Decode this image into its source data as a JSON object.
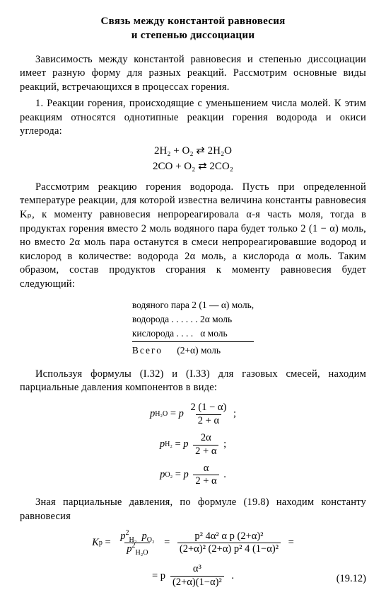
{
  "title_line1": "Связь между константой равновесия",
  "title_line2": "и степенью диссоциации",
  "para1": "Зависимость между константой равновесия и степенью диссоциации имеет разную форму для разных реакций. Рассмотрим основные виды реакций, встречающихся в процессах горения.",
  "para2": "1. Реакции горения, происходящие с уменьшением числа молей. К этим реакциям относятся однотипные реакции горения водорода и окиси углерода:",
  "eq1a": "2H₂ + O₂ ⇄ 2H₂O",
  "eq1b": "2CO + O₂ ⇄ 2CO₂",
  "para3": "Рассмотрим реакцию горения водорода. Пусть при определенной температуре реакции, для которой известна величина константы равновесия Kₚ, к моменту равновесия непрореагировала α-я часть моля, тогда в продуктах горения вместо 2 моль водяного пара будет только 2 (1 − α) моль, но вместо 2α моль пара останутся в смеси непрореагировавшие водород и кислород в количестве: водорода 2α моль, а кислорода α моль. Таким образом, состав продуктов сгорания к моменту равновесия будет следующий:",
  "tbl": {
    "r1": "водяного пара 2 (1 — α) моль,",
    "r2": "водорода . . . . . . 2α моль",
    "r3": "кислорода . . . .   α моль",
    "total_label": "Всего",
    "total_val": "(2+α)  моль"
  },
  "para4": "Используя формулы (I.32) и (I.33) для газовых смесей, находим парциальные давления компонентов в виде:",
  "pp": {
    "h2o_lhs": "p",
    "h2o_sub": "H₂O",
    "h2_sub": "H₂",
    "o2_sub": "O₂",
    "p": "p",
    "frac1_num": "2 (1 − α)",
    "frac1_den": "2 + α",
    "frac2_num": "2α",
    "frac2_den": "2 + α",
    "frac3_num": "α",
    "frac3_den": "2 + α"
  },
  "para5": "Зная парциальные давления, по формуле (19.8) находим константу равновесия",
  "kp": {
    "K": "K",
    "psub": "p",
    "top1_a": "p",
    "top1_a_sub": "H₂",
    "top1_a_sup": "2",
    "top1_b": "p",
    "top1_b_sub": "O₂",
    "bot1_a": "p",
    "bot1_a_sub": "H₂O",
    "bot1_a_sup": "2",
    "top2": "p² 4α² α p (2+α)²",
    "bot2": "(2+α)² (2+α) p² 4 (1−α)²",
    "eq2_lead": "= p",
    "top3": "α³",
    "bot3": "(2+α)(1−α)²",
    "dot": "."
  },
  "eqnum": "(19.12)"
}
